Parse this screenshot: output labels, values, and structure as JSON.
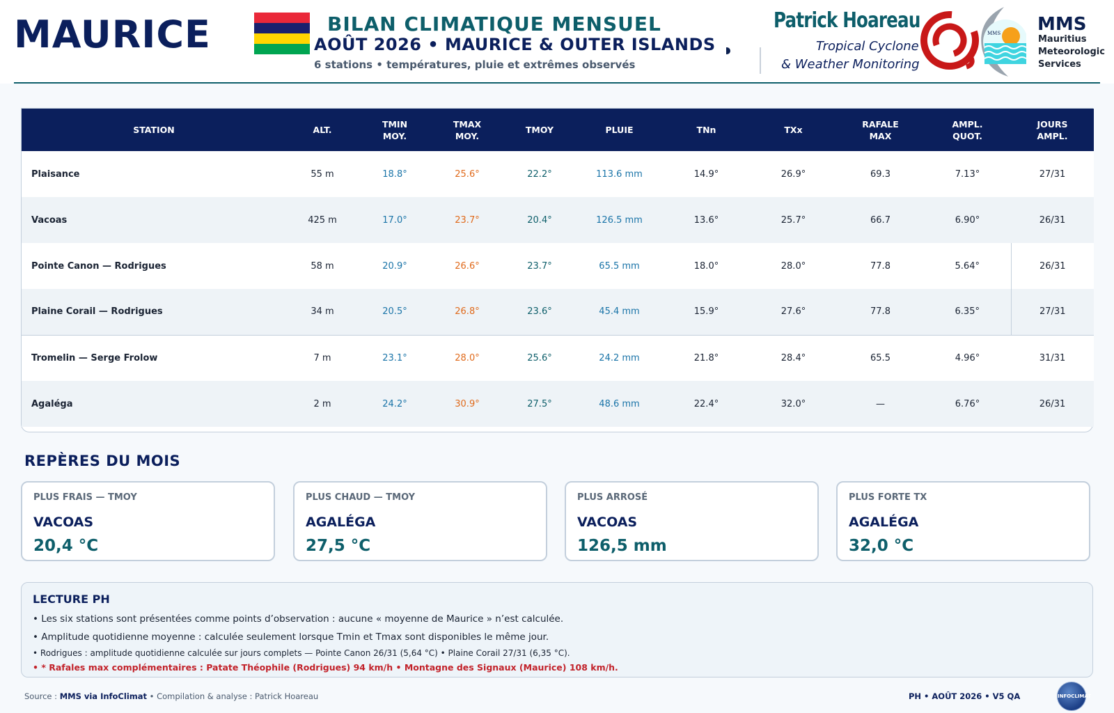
{
  "header": {
    "country": "MAURICE",
    "title": "BILAN CLIMATIQUE MENSUEL",
    "subtitle": "AOÛT 2026 • MAURICE & OUTER ISLANDS",
    "description": "6 stations • températures, pluie et extrêmes observés",
    "brand_name": "Patrick Hoareau",
    "brand_line1": "Tropical Cyclone",
    "brand_line2": "& Weather Monitoring",
    "mms_title": "MMS",
    "mms_sub_1": "Mauritius",
    "mms_sub_2": "Meteorologic",
    "mms_sub_3": "Services",
    "mms_logo_text": "MMS",
    "flag_colors": [
      "#ea2839",
      "#1a206d",
      "#ffd500",
      "#00a551"
    ]
  },
  "table": {
    "headers": {
      "station": "STATION",
      "alt": "ALT.",
      "tmin_1": "TMIN",
      "tmin_2": "MOY.",
      "tmax_1": "TMAX",
      "tmax_2": "MOY.",
      "tmoy": "TMOY",
      "pluie": "PLUIE",
      "tnn": "TNn",
      "txx": "TXx",
      "rafale_1": "RAFALE",
      "rafale_2": "MAX",
      "ampl_1": "AMPL.",
      "ampl_2": "QUOT.",
      "jours_1": "JOURS",
      "jours_2": "AMPL."
    },
    "rows": [
      {
        "station": "Plaisance",
        "alt": "55 m",
        "tmin": "18.8°",
        "tmax": "25.6°",
        "tmoy": "22.2°",
        "pluie": "113.6 mm",
        "tnn": "14.9°",
        "txx": "26.9°",
        "rafale": "69.3",
        "ampl": "7.13°",
        "jours": "27/31"
      },
      {
        "station": "Vacoas",
        "alt": "425 m",
        "tmin": "17.0°",
        "tmax": "23.7°",
        "tmoy": "20.4°",
        "pluie": "126.5 mm",
        "tnn": "13.6°",
        "txx": "25.7°",
        "rafale": "66.7",
        "ampl": "6.90°",
        "jours": "26/31"
      },
      {
        "station": "Pointe Canon — Rodrigues",
        "alt": "58 m",
        "tmin": "20.9°",
        "tmax": "26.6°",
        "tmoy": "23.7°",
        "pluie": "65.5 mm",
        "tnn": "18.0°",
        "txx": "28.0°",
        "rafale": "77.8",
        "ampl": "5.64°",
        "jours": "26/31"
      },
      {
        "station": "Plaine Corail — Rodrigues",
        "alt": "34 m",
        "tmin": "20.5°",
        "tmax": "26.8°",
        "tmoy": "23.6°",
        "pluie": "45.4 mm",
        "tnn": "15.9°",
        "txx": "27.6°",
        "rafale": "77.8",
        "ampl": "6.35°",
        "jours": "27/31"
      },
      {
        "station": "Tromelin — Serge Frolow",
        "alt": "7 m",
        "tmin": "23.1°",
        "tmax": "28.0°",
        "tmoy": "25.6°",
        "pluie": "24.2 mm",
        "tnn": "21.8°",
        "txx": "28.4°",
        "rafale": "65.5",
        "ampl": "4.96°",
        "jours": "31/31"
      },
      {
        "station": "Agaléga",
        "alt": "2 m",
        "tmin": "24.2°",
        "tmax": "30.9°",
        "tmoy": "27.5°",
        "pluie": "48.6 mm",
        "tnn": "22.4°",
        "txx": "32.0°",
        "rafale": "—",
        "ampl": "6.76°",
        "jours": "26/31"
      }
    ]
  },
  "reperes": {
    "title": "REPÈRES DU MOIS",
    "cards": [
      {
        "label": "PLUS FRAIS — TMOY",
        "name": "VACOAS",
        "value": "20,4 °C"
      },
      {
        "label": "PLUS CHAUD — TMOY",
        "name": "AGALÉGA",
        "value": "27,5 °C"
      },
      {
        "label": "PLUS ARROSÉ",
        "name": "VACOAS",
        "value": "126,5 mm"
      },
      {
        "label": "PLUS FORTE TX",
        "name": "AGALÉGA",
        "value": "32,0 °C"
      }
    ]
  },
  "lecture": {
    "title": "LECTURE PH",
    "line1": "• Les six stations sont présentées comme points d’observation : aucune « moyenne de Maurice » n’est calculée.",
    "line2": "• Amplitude quotidienne moyenne : calculée seulement lorsque Tmin et Tmax sont disponibles le même jour.",
    "line3": "• Rodrigues : amplitude quotidienne calculée sur jours complets — Pointe Canon 26/31 (5,64 °C) • Plaine Corail 27/31 (6,35 °C).",
    "line4": "• * Rafales max complémentaires : Patate Théophile (Rodrigues) 94 km/h • Montagne des Signaux (Maurice) 108 km/h."
  },
  "footer": {
    "source_prefix": "Source : ",
    "source_name": "MMS via InfoClimat",
    "source_suffix": " • Compilation & analyse : Patrick Hoareau",
    "right": "PH • AOÛT 2026 • V5 QA",
    "badge": "INFOCLIMAT"
  }
}
